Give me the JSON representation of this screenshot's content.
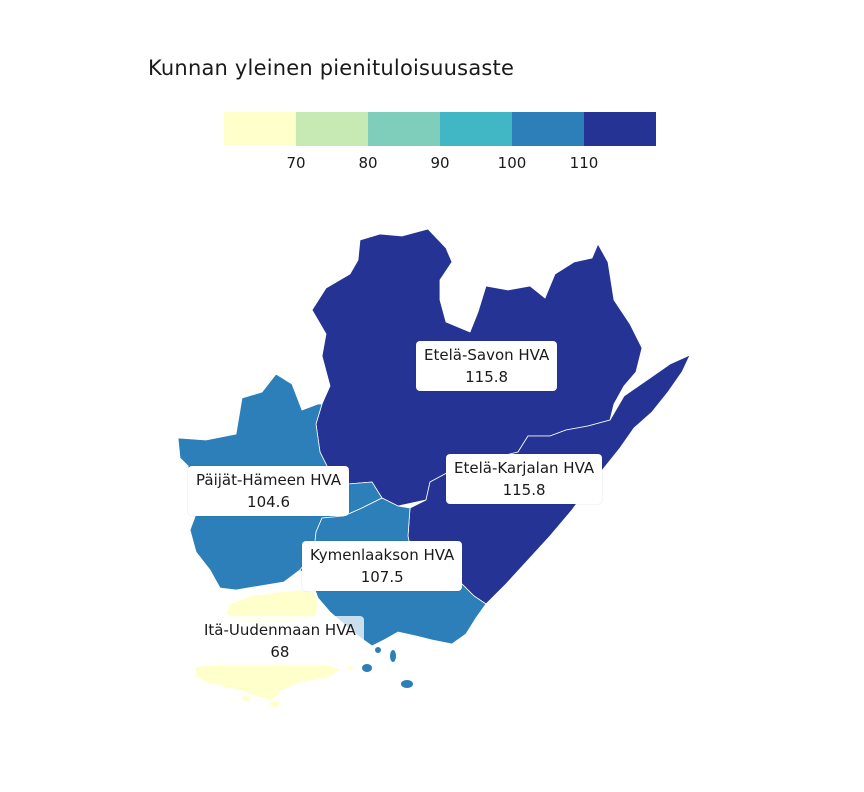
{
  "title": "Kunnan yleinen pienituloisuusaste",
  "legend": {
    "colors": [
      "#ffffcc",
      "#c7e9b4",
      "#7fcdbb",
      "#41b6c4",
      "#2c7fb8",
      "#253494"
    ],
    "ticks": [
      "70",
      "80",
      "90",
      "100",
      "110"
    ]
  },
  "regions": [
    {
      "name": "Etelä-Savon HVA",
      "value": "115.8",
      "color": "#253494"
    },
    {
      "name": "Etelä-Karjalan HVA",
      "value": "115.8",
      "color": "#253494"
    },
    {
      "name": "Päijät-Hämeen HVA",
      "value": "104.6",
      "color": "#2c7fb8"
    },
    {
      "name": "Kymenlaakson HVA",
      "value": "107.5",
      "color": "#2c7fb8"
    },
    {
      "name": "Itä-Uudenmaan HVA",
      "value": "68",
      "color": "#ffffcc"
    }
  ]
}
